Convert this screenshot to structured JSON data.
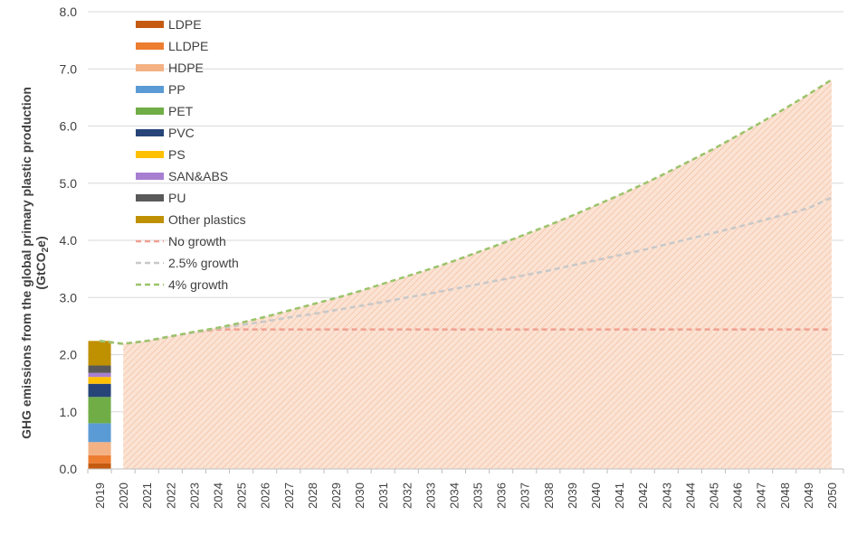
{
  "chart_data": {
    "type": "area",
    "title": "",
    "xlabel": "",
    "ylabel": "GHG emissions from the global primary plastic production",
    "ylabel_unit": "(GtCO2e)",
    "ylim": [
      0,
      8
    ],
    "yticks": [
      "0.0",
      "1.0",
      "2.0",
      "3.0",
      "4.0",
      "5.0",
      "6.0",
      "7.0",
      "8.0"
    ],
    "grid": "horizontal",
    "legend_position": "top-left",
    "categories": [
      "2019",
      "2020",
      "2021",
      "2022",
      "2023",
      "2024",
      "2025",
      "2026",
      "2027",
      "2028",
      "2029",
      "2030",
      "2031",
      "2032",
      "2033",
      "2034",
      "2035",
      "2036",
      "2037",
      "2038",
      "2039",
      "2040",
      "2041",
      "2042",
      "2043",
      "2044",
      "2045",
      "2046",
      "2047",
      "2048",
      "2049",
      "2050"
    ],
    "stacked_bar_2019": [
      {
        "name": "LDPE",
        "value": 0.1,
        "color": "#c55a11"
      },
      {
        "name": "LLDPE",
        "value": 0.14,
        "color": "#ed7d31"
      },
      {
        "name": "HDPE",
        "value": 0.23,
        "color": "#f4b183"
      },
      {
        "name": "PP",
        "value": 0.33,
        "color": "#5b9bd5"
      },
      {
        "name": "PET",
        "value": 0.46,
        "color": "#70ad47"
      },
      {
        "name": "PVC",
        "value": 0.23,
        "color": "#264478"
      },
      {
        "name": "PS",
        "value": 0.12,
        "color": "#ffc000"
      },
      {
        "name": "SAN&ABS",
        "value": 0.07,
        "color": "#a77fd1"
      },
      {
        "name": "PU",
        "value": 0.13,
        "color": "#595959"
      },
      {
        "name": "Other plastics",
        "value": 0.43,
        "color": "#bf9000"
      }
    ],
    "series": [
      {
        "name": "No growth",
        "color": "#f0a090",
        "values": [
          2.24,
          2.19,
          2.24,
          2.32,
          2.39,
          2.44,
          2.44,
          2.44,
          2.44,
          2.44,
          2.44,
          2.44,
          2.44,
          2.44,
          2.44,
          2.44,
          2.44,
          2.44,
          2.44,
          2.44,
          2.44,
          2.44,
          2.44,
          2.44,
          2.44,
          2.44,
          2.44,
          2.44,
          2.44,
          2.44,
          2.44,
          2.44
        ]
      },
      {
        "name": "2.5% growth",
        "color": "#c8c8c8",
        "values": [
          2.24,
          2.19,
          2.24,
          2.32,
          2.39,
          2.46,
          2.52,
          2.58,
          2.65,
          2.71,
          2.78,
          2.85,
          2.92,
          3.0,
          3.07,
          3.15,
          3.23,
          3.31,
          3.39,
          3.47,
          3.56,
          3.65,
          3.74,
          3.83,
          3.93,
          4.03,
          4.13,
          4.23,
          4.34,
          4.45,
          4.56,
          4.75
        ]
      },
      {
        "name": "4% growth",
        "color": "#9bc36b",
        "values": [
          2.24,
          2.19,
          2.24,
          2.32,
          2.4,
          2.47,
          2.56,
          2.66,
          2.77,
          2.88,
          2.99,
          3.11,
          3.24,
          3.37,
          3.5,
          3.64,
          3.79,
          3.94,
          4.1,
          4.26,
          4.43,
          4.61,
          4.79,
          4.98,
          5.18,
          5.39,
          5.6,
          5.83,
          6.06,
          6.3,
          6.55,
          6.81
        ]
      }
    ]
  },
  "colors": {
    "area_fill": "#fbe3d4",
    "area_hatch": "#f2b99a",
    "gridline": "#d9d9d9",
    "axis": "#bfbfbf",
    "text": "#404040"
  }
}
